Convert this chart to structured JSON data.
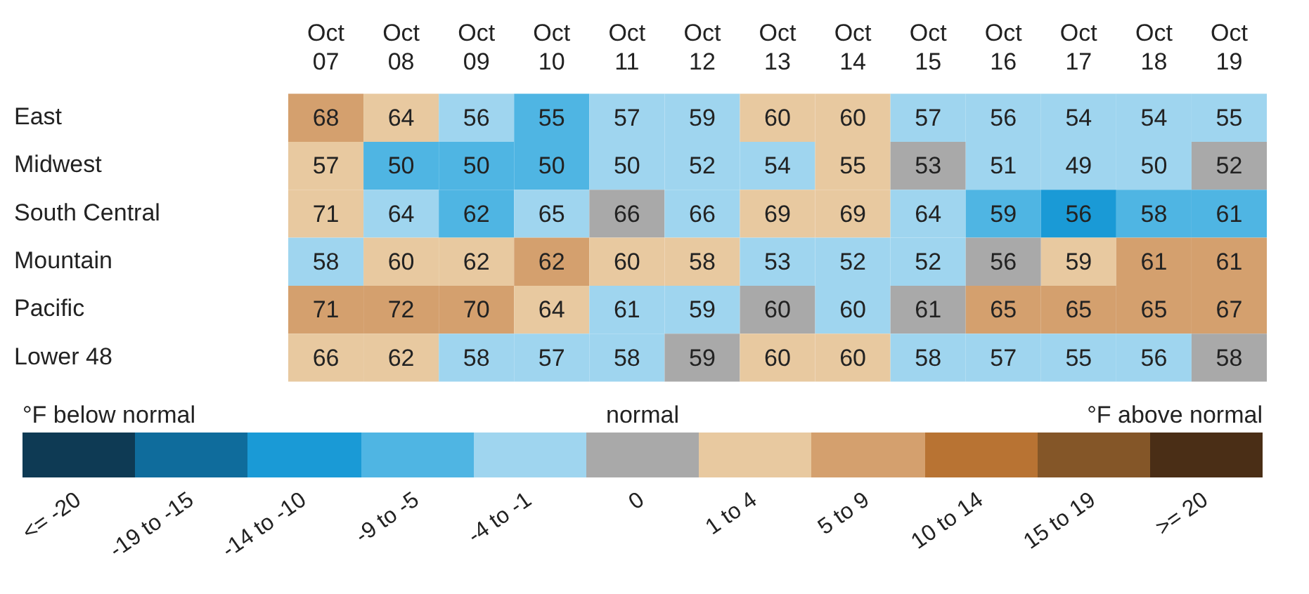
{
  "chart_data": {
    "type": "heatmap",
    "categories": [
      "Oct 07",
      "Oct 08",
      "Oct 09",
      "Oct 10",
      "Oct 11",
      "Oct 12",
      "Oct 13",
      "Oct 14",
      "Oct 15",
      "Oct 16",
      "Oct 17",
      "Oct 18",
      "Oct 19"
    ],
    "y_categories": [
      "East",
      "Midwest",
      "South Central",
      "Mountain",
      "Pacific",
      "Lower 48"
    ],
    "cells": [
      [
        68,
        64,
        56,
        55,
        57,
        59,
        60,
        60,
        57,
        56,
        54,
        54,
        55
      ],
      [
        57,
        50,
        50,
        50,
        50,
        52,
        54,
        55,
        53,
        51,
        49,
        50,
        52
      ],
      [
        71,
        64,
        62,
        65,
        66,
        66,
        69,
        69,
        64,
        59,
        56,
        58,
        61
      ],
      [
        58,
        60,
        62,
        62,
        60,
        58,
        53,
        52,
        52,
        56,
        59,
        61,
        61
      ],
      [
        71,
        72,
        70,
        64,
        61,
        59,
        60,
        60,
        61,
        65,
        65,
        65,
        67
      ],
      [
        66,
        62,
        58,
        57,
        58,
        59,
        60,
        60,
        58,
        57,
        55,
        56,
        58
      ]
    ],
    "colors": [
      [
        "#d4a06e",
        "#e8c9a0",
        "#9fd5ef",
        "#4fb5e3",
        "#9fd5ef",
        "#9fd5ef",
        "#e8c9a0",
        "#e8c9a0",
        "#9fd5ef",
        "#9fd5ef",
        "#9fd5ef",
        "#9fd5ef",
        "#9fd5ef"
      ],
      [
        "#e8c9a0",
        "#4fb5e3",
        "#4fb5e3",
        "#4fb5e3",
        "#9fd5ef",
        "#9fd5ef",
        "#9fd5ef",
        "#e8c9a0",
        "#a9a9a9",
        "#9fd5ef",
        "#9fd5ef",
        "#9fd5ef",
        "#a9a9a9"
      ],
      [
        "#e8c9a0",
        "#9fd5ef",
        "#4fb5e3",
        "#9fd5ef",
        "#a9a9a9",
        "#9fd5ef",
        "#e8c9a0",
        "#e8c9a0",
        "#9fd5ef",
        "#4fb5e3",
        "#1a9ad6",
        "#4fb5e3",
        "#4fb5e3"
      ],
      [
        "#9fd5ef",
        "#e8c9a0",
        "#e8c9a0",
        "#d4a06e",
        "#e8c9a0",
        "#e8c9a0",
        "#9fd5ef",
        "#9fd5ef",
        "#9fd5ef",
        "#a9a9a9",
        "#e8c9a0",
        "#d4a06e",
        "#d4a06e"
      ],
      [
        "#d4a06e",
        "#d4a06e",
        "#d4a06e",
        "#e8c9a0",
        "#9fd5ef",
        "#9fd5ef",
        "#a9a9a9",
        "#9fd5ef",
        "#a9a9a9",
        "#d4a06e",
        "#d4a06e",
        "#d4a06e",
        "#d4a06e"
      ],
      [
        "#e8c9a0",
        "#e8c9a0",
        "#9fd5ef",
        "#9fd5ef",
        "#9fd5ef",
        "#a9a9a9",
        "#e8c9a0",
        "#e8c9a0",
        "#9fd5ef",
        "#9fd5ef",
        "#9fd5ef",
        "#9fd5ef",
        "#a9a9a9"
      ]
    ],
    "data_labels": true,
    "annotations": [
      "°F below normal",
      "normal",
      "°F above normal",
      "<= -20",
      "-19 to -15",
      "-14 to -10",
      "-9 to -5",
      "-4 to -1",
      "0",
      "1 to 4",
      "5 to 9",
      "10 to 14",
      "15 to 19",
      ">= 20"
    ]
  }
}
